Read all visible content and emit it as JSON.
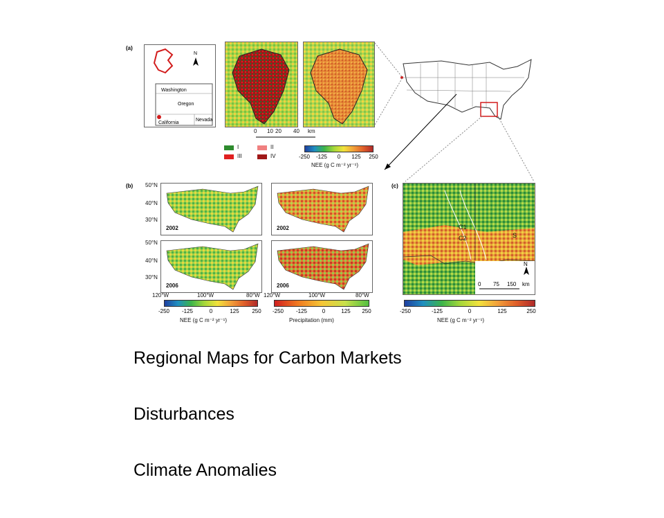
{
  "panel_a": {
    "letter": "(a)",
    "inset_labels": {
      "washington": "Washington",
      "oregon": "Oregon",
      "california": "California",
      "nevada": "Nevada",
      "north": "N"
    },
    "scale": {
      "ticks": [
        "0",
        "10",
        "20",
        "40"
      ],
      "unit": "km"
    },
    "legend": [
      {
        "label": "I",
        "color": "#2e8b2e"
      },
      {
        "label": "III",
        "color": "#e02020"
      },
      {
        "label": "II",
        "color": "#f08080"
      },
      {
        "label": "IV",
        "color": "#a01818"
      }
    ],
    "colorbar": {
      "ticks": [
        "-250",
        "-125",
        "0",
        "125",
        "250"
      ],
      "label": "NEE (g C m⁻² yr⁻¹)"
    }
  },
  "panel_b": {
    "letter": "(b)",
    "lat_ticks": [
      "50°N",
      "40°N",
      "30°N"
    ],
    "lon_ticks": [
      "120°W",
      "100°W",
      "80°W"
    ],
    "years": {
      "top": "2002",
      "bottom": "2006"
    },
    "colorbar_nee": {
      "ticks": [
        "-250",
        "-125",
        "0",
        "125",
        "250"
      ],
      "label": "NEE (g C m⁻² yr⁻¹)"
    },
    "colorbar_precip": {
      "ticks": [
        "-250",
        "-125",
        "0",
        "125",
        "250"
      ],
      "label": "Precipitation (mm)"
    }
  },
  "panel_c": {
    "letter": "(c)",
    "region_labels": {
      "c1": "C1",
      "c2": "C2",
      "s": "S"
    },
    "north": "N",
    "scale": {
      "ticks": [
        "0",
        "75",
        "150"
      ],
      "unit": "km"
    },
    "colorbar": {
      "ticks": [
        "-250",
        "-125",
        "0",
        "125",
        "250"
      ],
      "label": "NEE (g C m⁻² yr⁻¹)"
    }
  },
  "bullets": [
    "Regional Maps for Carbon Markets",
    "Disturbances",
    "Climate Anomalies"
  ],
  "colors": {
    "nee_ramp": [
      "#1f3fa0",
      "#1f8fc0",
      "#3cb44a",
      "#a6d83a",
      "#f2e23c",
      "#f2a03a",
      "#e0602a",
      "#b02a2a"
    ],
    "precip_ramp": [
      "#d02020",
      "#f07a20",
      "#f6c636",
      "#c8e04a",
      "#52c040"
    ]
  }
}
